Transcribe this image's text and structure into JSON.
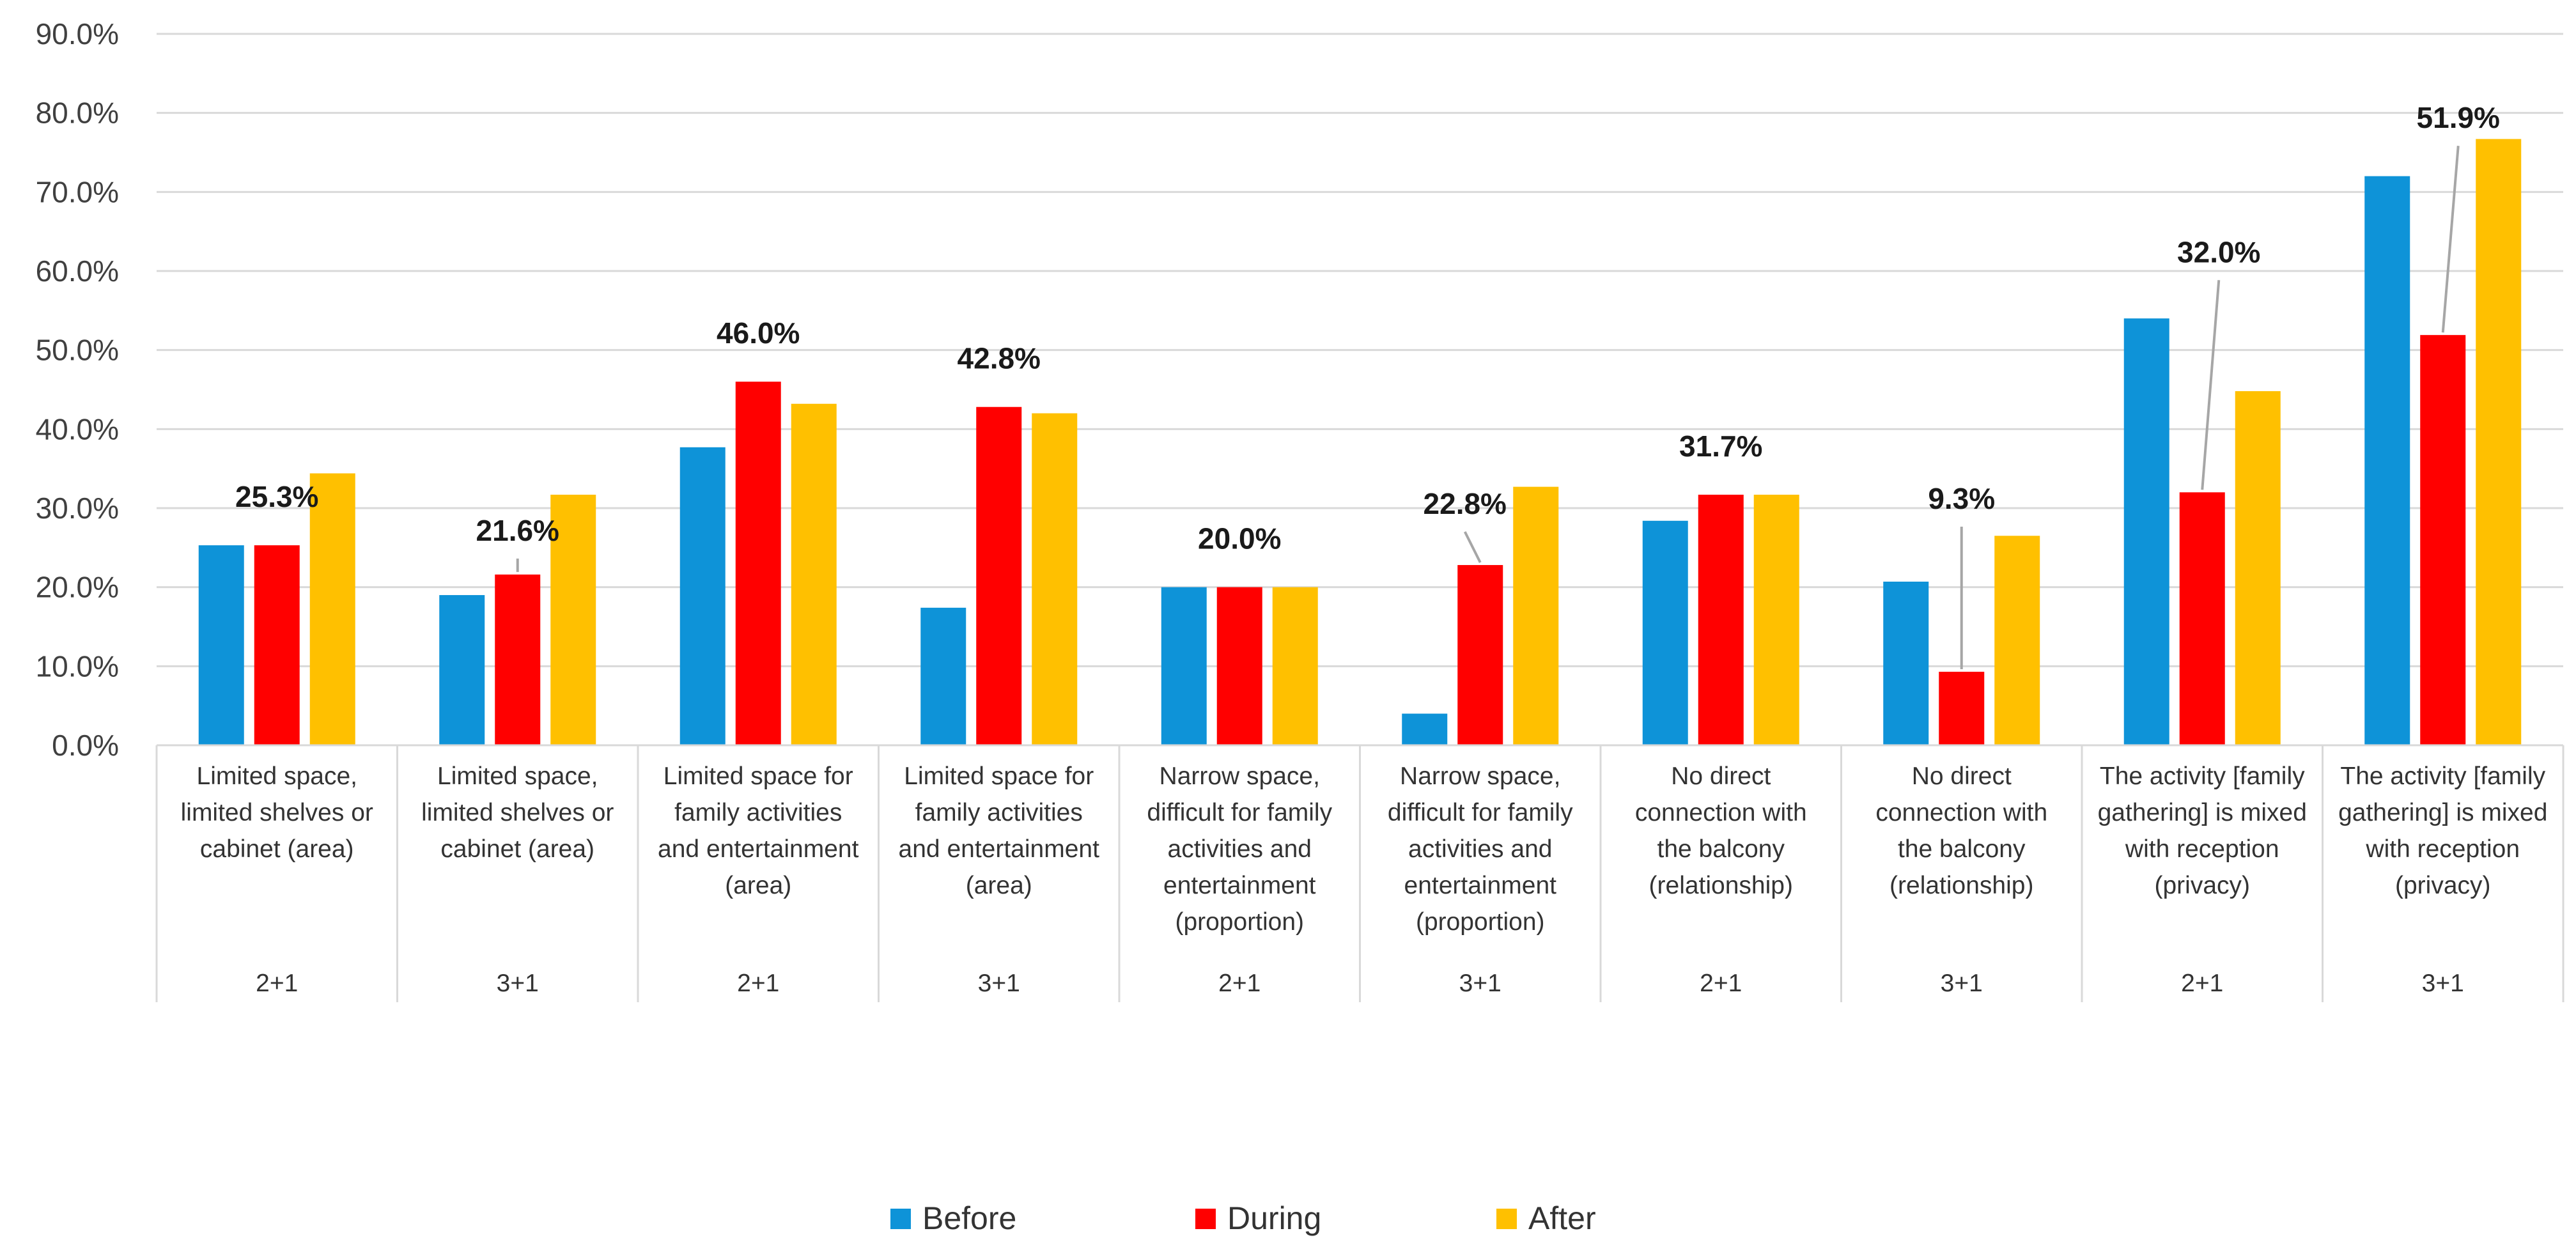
{
  "chart_data": {
    "type": "bar",
    "title": "",
    "xlabel": "",
    "ylabel": "",
    "ylim": [
      0,
      90
    ],
    "y_ticks": [
      0,
      10,
      20,
      30,
      40,
      50,
      60,
      70,
      80,
      90
    ],
    "y_tick_labels": [
      "0.0%",
      "10.0%",
      "20.0%",
      "30.0%",
      "40.0%",
      "50.0%",
      "60.0%",
      "70.0%",
      "80.0%",
      "90.0%"
    ],
    "grid": true,
    "legend_position": "bottom",
    "categories": [
      {
        "label": [
          "Limited space,",
          "limited shelves or",
          "cabinet (area)"
        ],
        "group": "2+1"
      },
      {
        "label": [
          "Limited space,",
          "limited shelves or",
          "cabinet (area)"
        ],
        "group": "3+1"
      },
      {
        "label": [
          "Limited space for",
          "family activities",
          "and entertainment",
          "(area)"
        ],
        "group": "2+1"
      },
      {
        "label": [
          "Limited space for",
          "family activities",
          "and entertainment",
          "(area)"
        ],
        "group": "3+1"
      },
      {
        "label": [
          "Narrow space,",
          "difficult for family",
          "activities and",
          "entertainment",
          "(proportion)"
        ],
        "group": "2+1"
      },
      {
        "label": [
          "Narrow space,",
          "difficult for family",
          "activities and",
          "entertainment",
          "(proportion)"
        ],
        "group": "3+1"
      },
      {
        "label": [
          "No direct",
          "connection with",
          "the balcony",
          "(relationship)"
        ],
        "group": "2+1"
      },
      {
        "label": [
          "No direct",
          "connection with",
          "the balcony",
          "(relationship)"
        ],
        "group": "3+1"
      },
      {
        "label": [
          "The activity [family",
          "gathering] is mixed",
          "with reception",
          "(privacy)"
        ],
        "group": "2+1"
      },
      {
        "label": [
          "The activity [family",
          "gathering] is mixed",
          "with reception",
          "(privacy)"
        ],
        "group": "3+1"
      }
    ],
    "series": [
      {
        "name": "Before",
        "color": "#0e93d8",
        "values": [
          25.3,
          19.0,
          37.7,
          17.4,
          20.0,
          4.0,
          28.4,
          20.7,
          54.0,
          72.0
        ]
      },
      {
        "name": "During",
        "color": "#ff0000",
        "values": [
          25.3,
          21.6,
          46.0,
          42.8,
          20.0,
          22.8,
          31.7,
          9.3,
          32.0,
          51.9
        ]
      },
      {
        "name": "After",
        "color": "#ffc000",
        "values": [
          34.4,
          31.7,
          43.2,
          42.0,
          20.0,
          32.7,
          31.7,
          26.5,
          44.8,
          76.7
        ]
      }
    ],
    "data_labels": [
      {
        "text": "25.3%",
        "leader": false
      },
      {
        "text": "21.6%",
        "leader": true
      },
      {
        "text": "46.0%",
        "leader": false
      },
      {
        "text": "42.8%",
        "leader": false
      },
      {
        "text": "20.0%",
        "leader": false
      },
      {
        "text": "22.8%",
        "leader": true
      },
      {
        "text": "31.7%",
        "leader": false
      },
      {
        "text": "9.3%",
        "leader": true
      },
      {
        "text": "32.0%",
        "leader": true
      },
      {
        "text": "51.9%",
        "leader": true
      }
    ]
  }
}
